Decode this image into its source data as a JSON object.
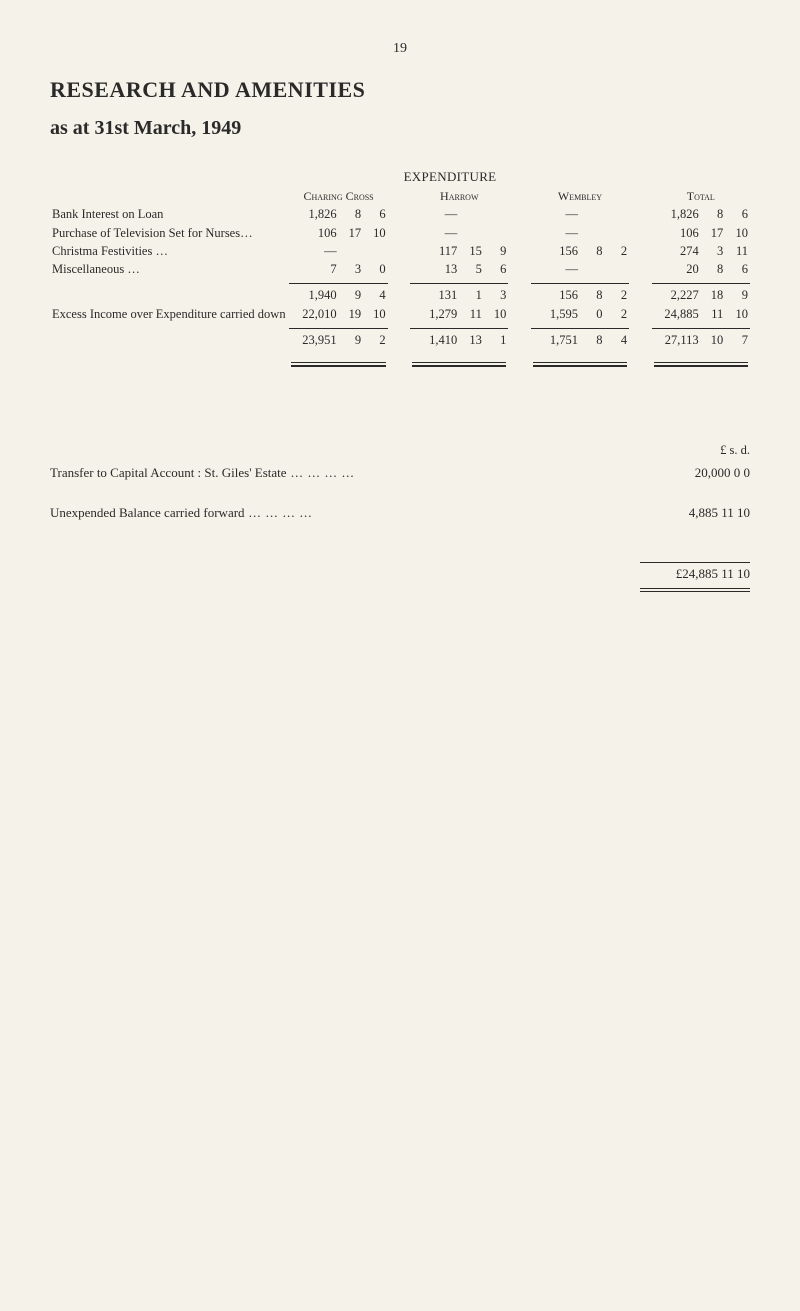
{
  "page_number": "19",
  "title": "RESEARCH AND AMENITIES",
  "subtitle": "as at 31st March, 1949",
  "section_heading": "EXPENDITURE",
  "columns": {
    "c1": "Charing Cross",
    "c2": "Harrow",
    "c3": "Wembley",
    "c4": "Total"
  },
  "rows": [
    {
      "label": "Bank Interest on Loan",
      "c1": [
        "1,826",
        "8",
        "6"
      ],
      "c2": [
        "—",
        "",
        ""
      ],
      "c3": [
        "—",
        "",
        ""
      ],
      "c4": [
        "1,826",
        "8",
        "6"
      ]
    },
    {
      "label": "Purchase of Television Set for Nurses…",
      "c1": [
        "106",
        "17",
        "10"
      ],
      "c2": [
        "—",
        "",
        ""
      ],
      "c3": [
        "—",
        "",
        ""
      ],
      "c4": [
        "106",
        "17",
        "10"
      ]
    },
    {
      "label": "Christma Festivities …",
      "c1": [
        "—",
        "",
        ""
      ],
      "c2": [
        "117",
        "15",
        "9"
      ],
      "c3": [
        "156",
        "8",
        "2"
      ],
      "c4": [
        "274",
        "3",
        "11"
      ]
    },
    {
      "label": "Miscellaneous …",
      "c1": [
        "7",
        "3",
        "0"
      ],
      "c2": [
        "13",
        "5",
        "6"
      ],
      "c3": [
        "—",
        "",
        ""
      ],
      "c4": [
        "20",
        "8",
        "6"
      ]
    }
  ],
  "subtotal": {
    "c1": [
      "1,940",
      "9",
      "4"
    ],
    "c2": [
      "131",
      "1",
      "3"
    ],
    "c3": [
      "156",
      "8",
      "2"
    ],
    "c4": [
      "2,227",
      "18",
      "9"
    ]
  },
  "excess_label": "Excess Income over Expenditure carried down",
  "excess": {
    "c1": [
      "22,010",
      "19",
      "10"
    ],
    "c2": [
      "1,279",
      "11",
      "10"
    ],
    "c3": [
      "1,595",
      "0",
      "2"
    ],
    "c4": [
      "24,885",
      "11",
      "10"
    ]
  },
  "total": {
    "c1": [
      "23,951",
      "9",
      "2"
    ],
    "c2": [
      "1,410",
      "13",
      "1"
    ],
    "c3": [
      "1,751",
      "8",
      "4"
    ],
    "c4": [
      "27,113",
      "10",
      "7"
    ]
  },
  "currency_header": "£   s.   d.",
  "lower_rows": [
    {
      "label": "Transfer to Capital Account : St. Giles' Estate",
      "amount": "20,000   0   0"
    },
    {
      "label": "Unexpended Balance carried forward",
      "amount": "4,885 11 10"
    }
  ],
  "grand_total": "£24,885 11 10"
}
